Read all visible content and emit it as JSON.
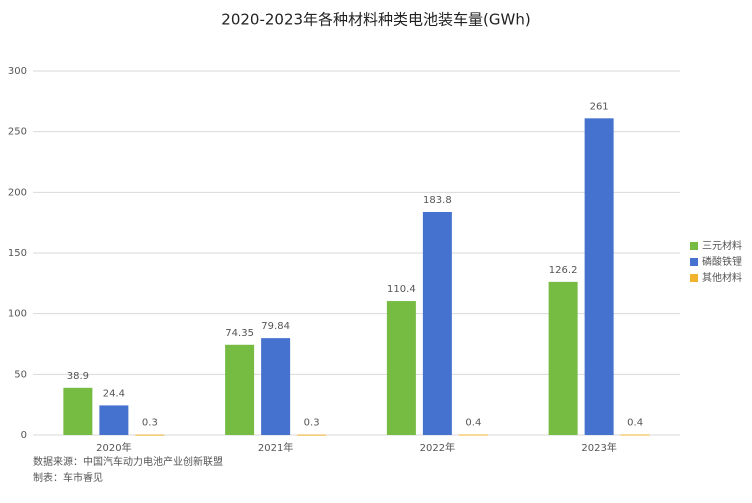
{
  "chart_data": {
    "type": "bar",
    "title": "2020-2023年各种材料种类电池装车量(GWh)",
    "categories": [
      "2020年",
      "2021年",
      "2022年",
      "2023年"
    ],
    "series": [
      {
        "name": "三元材料",
        "color": "#76bb42",
        "values": [
          38.9,
          74.35,
          110.4,
          126.2
        ]
      },
      {
        "name": "磷酸铁锂",
        "color": "#4672cf",
        "values": [
          24.4,
          79.84,
          183.8,
          261
        ]
      },
      {
        "name": "其他材料",
        "color": "#f1b32e",
        "values": [
          0.3,
          0.3,
          0.4,
          0.4
        ]
      }
    ],
    "ylim": [
      0,
      300
    ],
    "yticks": [
      0,
      50,
      100,
      150,
      200,
      250,
      300
    ],
    "grid": true,
    "legend": "right",
    "notes": [
      "数据来源：中国汽车动力电池产业创新联盟",
      "制表：车市睿见"
    ]
  }
}
